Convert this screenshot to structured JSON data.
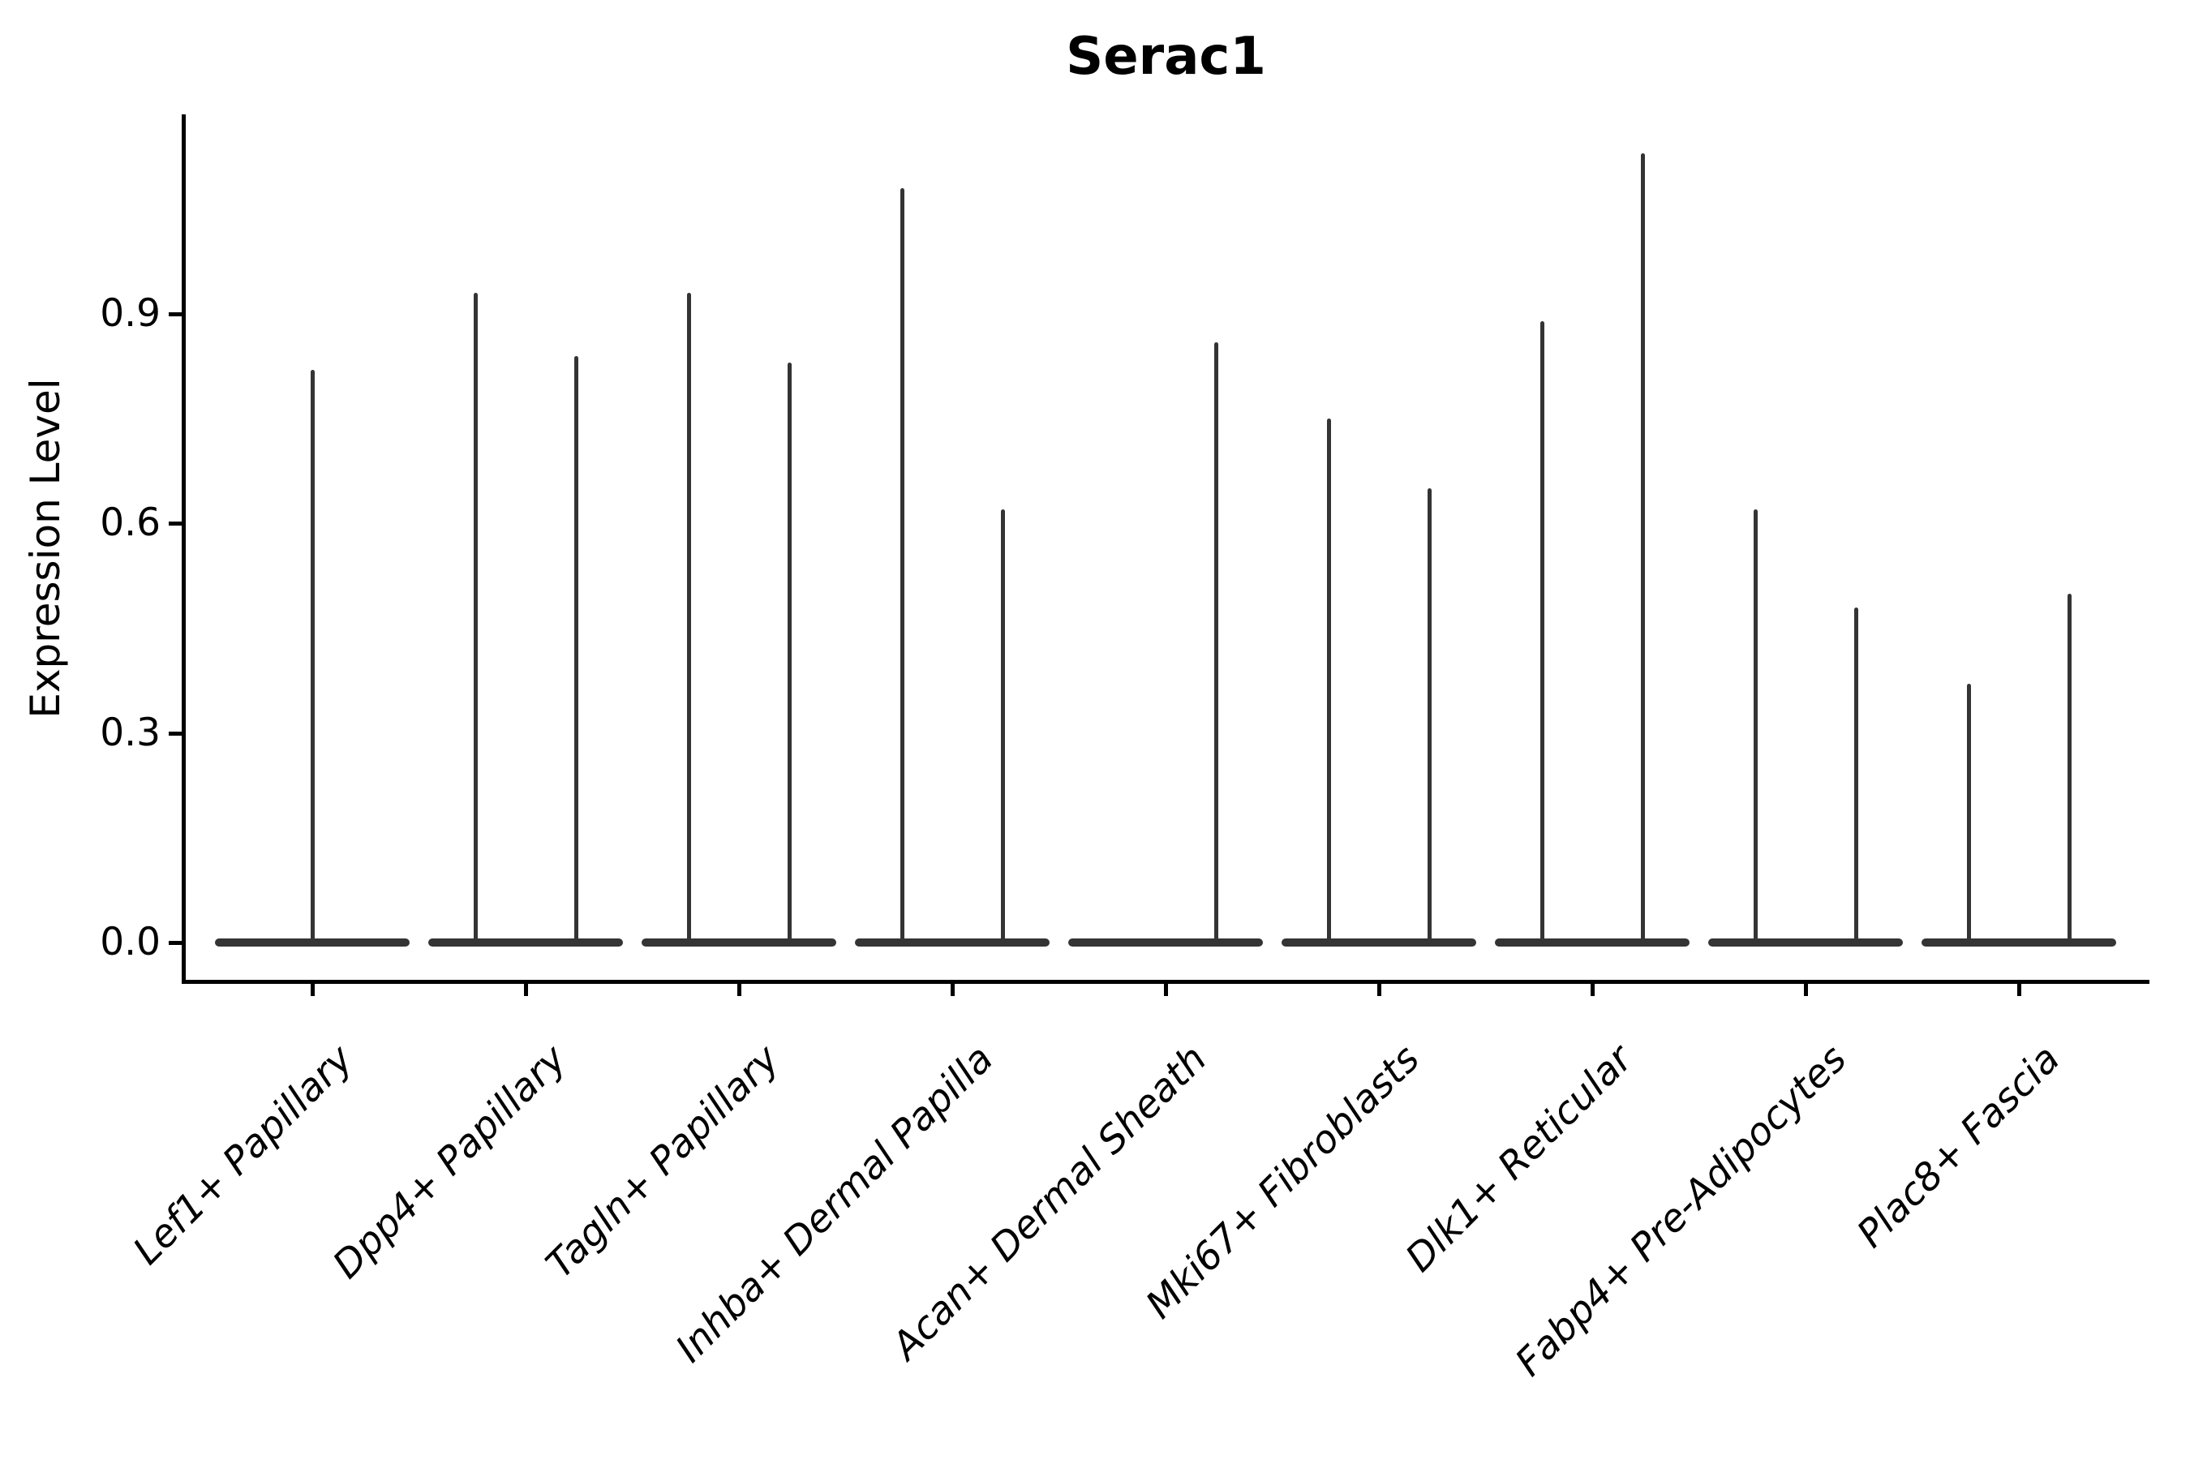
{
  "chart_data": {
    "type": "violin",
    "title": "Serac1",
    "ylabel": "Expression Level",
    "xlabel": "",
    "yticks": [
      0.0,
      0.3,
      0.6,
      0.9
    ],
    "ylim": [
      0,
      1.19
    ],
    "grid": false,
    "legend": "none",
    "description": "Needle-thin violin plot of single-cell gene expression; each cell type shows a flat density pancake at 0 with thin spikes rising to the maximum expressed values.",
    "categories": [
      {
        "label": "Lef1+ Papillary",
        "violins": [
          {
            "position": "center",
            "max": 0.82
          }
        ]
      },
      {
        "label": "Dpp4+ Papillary",
        "violins": [
          {
            "position": "left",
            "max": 0.93
          },
          {
            "position": "right",
            "max": 0.84
          }
        ]
      },
      {
        "label": "Tagln+ Papillary",
        "violins": [
          {
            "position": "left",
            "max": 0.93
          },
          {
            "position": "right",
            "max": 0.83
          }
        ]
      },
      {
        "label": "Inhba+ Dermal Papilla",
        "violins": [
          {
            "position": "left",
            "max": 1.08
          },
          {
            "position": "right",
            "max": 0.62
          }
        ]
      },
      {
        "label": "Acan+ Dermal Sheath",
        "violins": [
          {
            "position": "left",
            "max": 0.0
          },
          {
            "position": "right",
            "max": 0.86
          }
        ]
      },
      {
        "label": "Mki67+ Fibroblasts",
        "violins": [
          {
            "position": "left",
            "max": 0.75
          },
          {
            "position": "right",
            "max": 0.65
          }
        ]
      },
      {
        "label": "Dlk1+ Reticular",
        "violins": [
          {
            "position": "left",
            "max": 0.89
          },
          {
            "position": "right",
            "max": 1.13
          }
        ]
      },
      {
        "label": "Fabp4+ Pre-Adipocytes",
        "violins": [
          {
            "position": "left",
            "max": 0.62
          },
          {
            "position": "right",
            "max": 0.48
          }
        ]
      },
      {
        "label": "Plac8+ Fascia",
        "violins": [
          {
            "position": "left",
            "max": 0.37
          },
          {
            "position": "right",
            "max": 0.5
          }
        ]
      }
    ],
    "colors": {
      "violin": "#343434",
      "axis": "#000000",
      "text": "#000000",
      "background": "#ffffff"
    }
  }
}
